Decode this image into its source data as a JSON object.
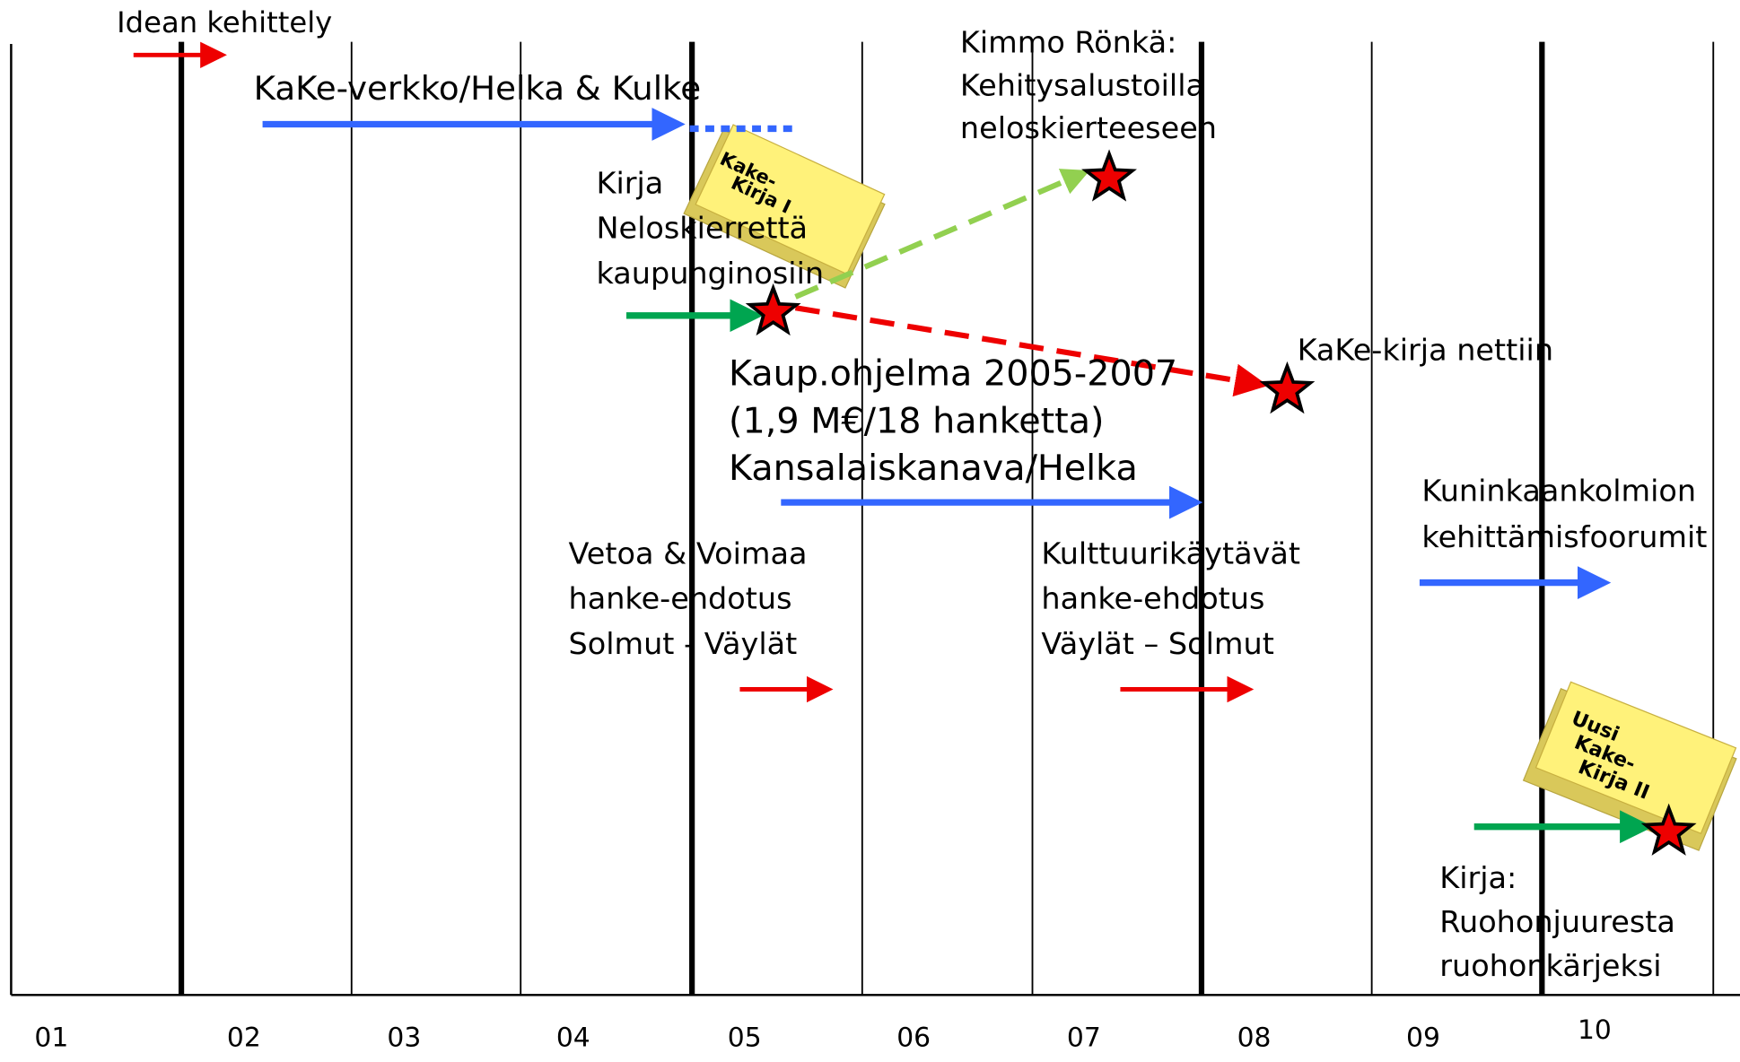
{
  "idea": "Idean kehittely",
  "kake_verkko": "KaKe-verkko/Helka & Kulke",
  "kimmo": [
    "Kimmo Rönkä:",
    "Kehitysalustoilla",
    "neloskierteeseen"
  ],
  "book1": [
    "Kake-",
    "Kirja I"
  ],
  "kirja1": [
    "Kirja",
    "Neloskierrettä",
    "kaupunginosiin"
  ],
  "netti": "KaKe-kirja nettiin",
  "kaup": [
    "Kaup.ohjelma 2005-2007",
    "(1,9 M€/18 hanketta)",
    "Kansalaiskanava/Helka"
  ],
  "kuninkaan": [
    "Kuninkaankolmion",
    "kehittämisfoorumit"
  ],
  "vetoa": [
    "Vetoa & Voimaa",
    "hanke-ehdotus",
    "Solmut - Väylät"
  ],
  "kulttuuri": [
    "Kulttuurikäytävät",
    "hanke-ehdotus",
    "Väylät – Solmut"
  ],
  "book2": [
    "Uusi",
    "Kake-",
    "Kirja II"
  ],
  "kirja2": [
    "Kirja:",
    "Ruohonjuuresta",
    "ruohonkärjeksi"
  ],
  "years": [
    "01",
    "02",
    "03",
    "04",
    "05",
    "06",
    "07",
    "08",
    "09",
    "10"
  ]
}
